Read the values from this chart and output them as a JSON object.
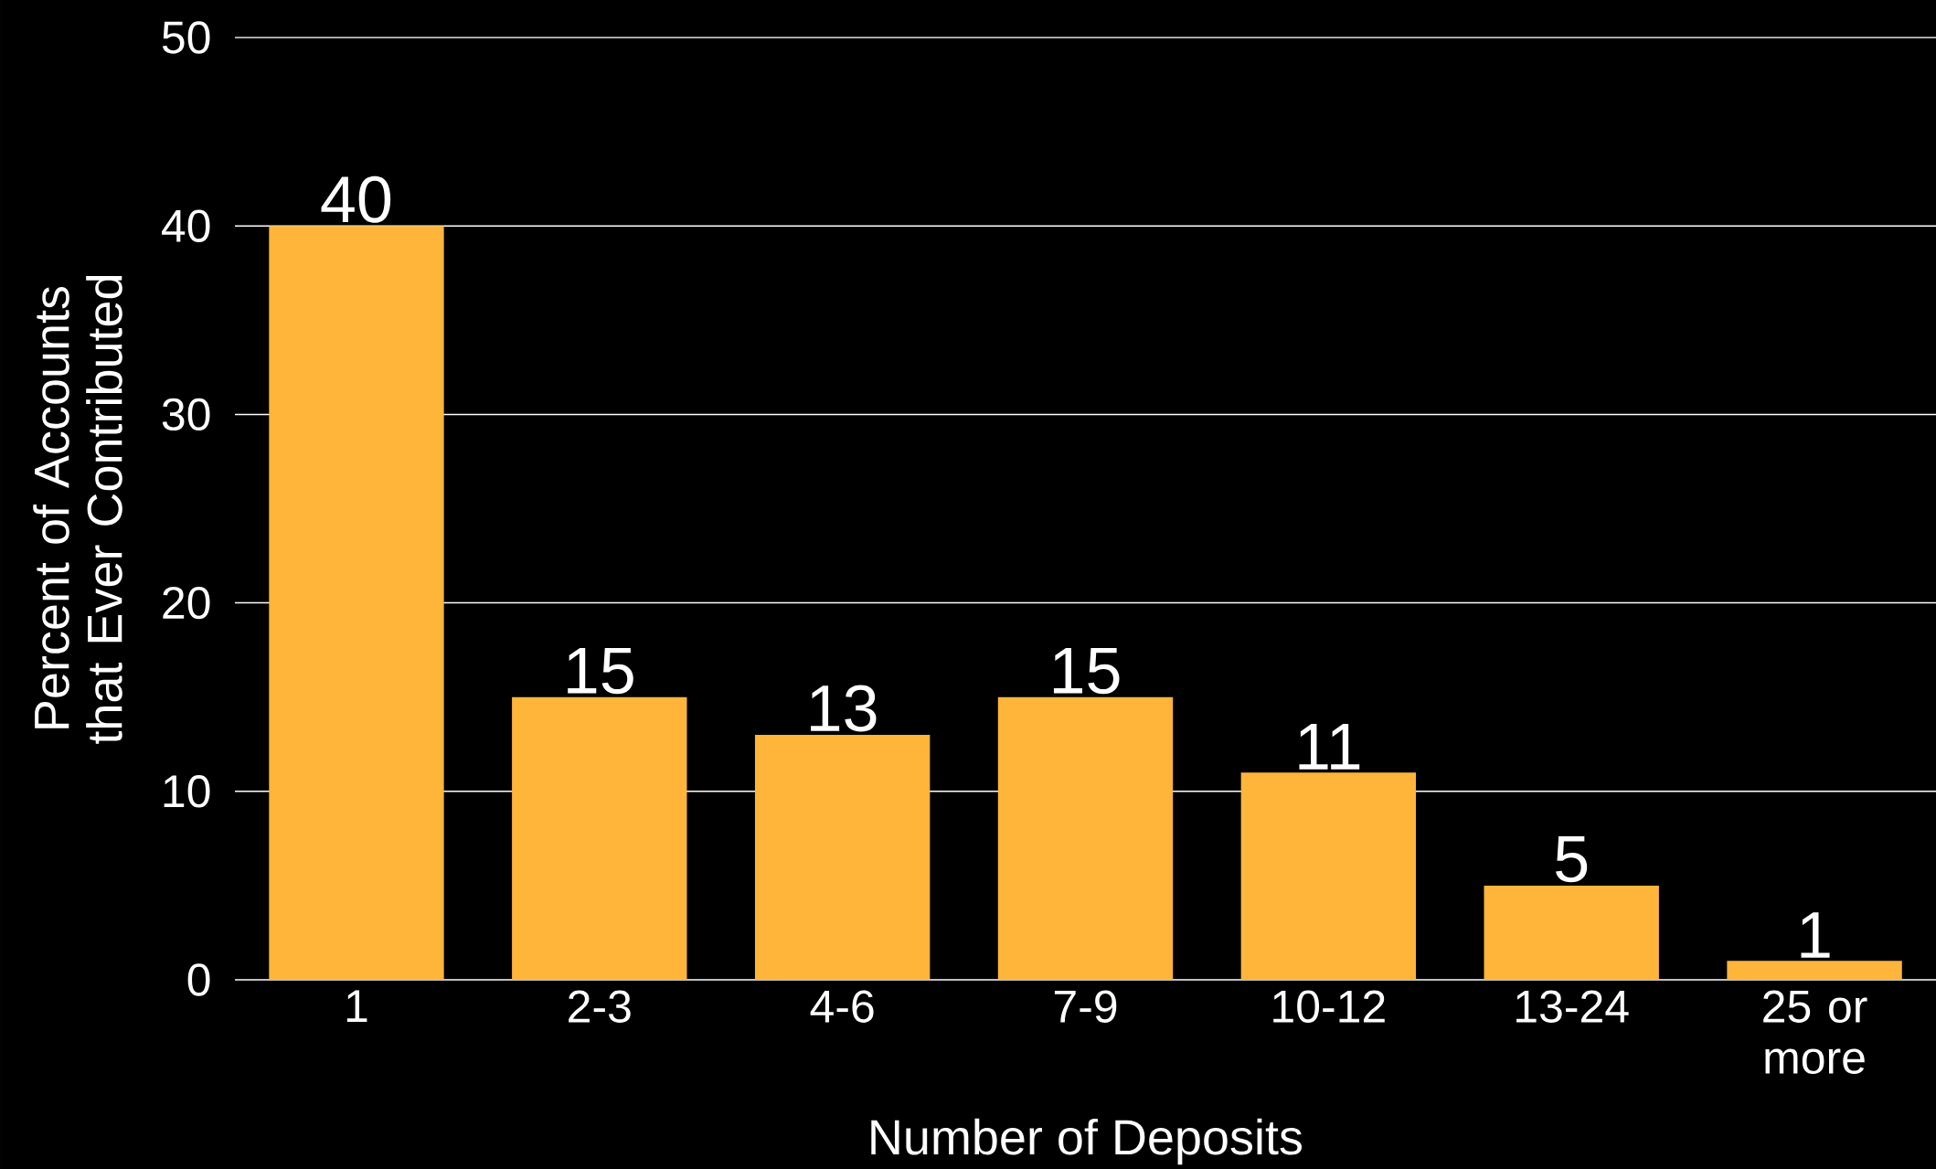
{
  "chart_data": {
    "type": "bar",
    "xlabel": "Number of Deposits",
    "ylabel": "Percent of Accounts that Ever Contributed",
    "categories": [
      "1",
      "2-3",
      "4-6",
      "7-9",
      "10-12",
      "13-24",
      "25 or more"
    ],
    "values": [
      40,
      15,
      13,
      15,
      11,
      5,
      1
    ],
    "color": "#ffb53a",
    "ylim": [
      0,
      50
    ],
    "yticks": [
      0,
      10,
      20,
      30,
      40,
      50
    ],
    "grid": "y",
    "data_labels": true
  }
}
